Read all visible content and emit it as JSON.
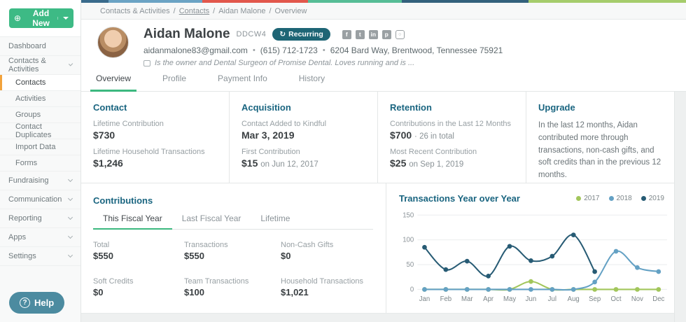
{
  "topbar": {
    "segments": [
      {
        "color": "#3a6b8c",
        "width": "4.5%"
      },
      {
        "color": "#6ba3c4",
        "width": "15.5%"
      },
      {
        "color": "#e2574c",
        "width": "17.5%"
      },
      {
        "color": "#56bd96",
        "width": "15.5%"
      },
      {
        "color": "#33617c",
        "width": "21%"
      },
      {
        "color": "#a5cc6b",
        "width": "26%"
      }
    ]
  },
  "breadcrumb": {
    "items": [
      "Contacts & Activities",
      "Contacts",
      "Aidan Malone",
      "Overview"
    ],
    "separator": "/"
  },
  "sidebar": {
    "add_new_label": "Add New",
    "add_new_icon": "⊕",
    "items": [
      {
        "label": "Dashboard"
      },
      {
        "label": "Contacts & Activities"
      },
      {
        "label": "Contacts"
      },
      {
        "label": "Activities"
      },
      {
        "label": "Groups"
      },
      {
        "label": "Contact Duplicates"
      },
      {
        "label": "Import Data"
      },
      {
        "label": "Forms"
      },
      {
        "label": "Fundraising"
      },
      {
        "label": "Communication"
      },
      {
        "label": "Reporting"
      },
      {
        "label": "Apps"
      },
      {
        "label": "Settings"
      }
    ],
    "help_label": "Help",
    "help_icon": "?"
  },
  "profile": {
    "name": "Aidan Malone",
    "id": "DDCW4",
    "badge": "Recurring",
    "badge_icon": "↻",
    "email": "aidanmalone83@gmail.com",
    "phone": "(615) 712-1723",
    "address": "6204 Bard Way, Brentwood, Tennessee 75921",
    "separator": "•",
    "note": "Is the owner and Dental Surgeon of Promise Dental. Loves running and is ...",
    "social": {
      "facebook": "f",
      "twitter": "t",
      "linkedin": "in",
      "pinterest": "p",
      "instagram": "○"
    }
  },
  "tabs": [
    {
      "label": "Overview"
    },
    {
      "label": "Profile"
    },
    {
      "label": "Payment Info"
    },
    {
      "label": "History"
    }
  ],
  "cards": [
    {
      "title": "Contact",
      "stats": [
        {
          "label": "Lifetime Contribution",
          "value": "$730"
        },
        {
          "label": "Lifetime Household Transactions",
          "value": "$1,246"
        }
      ]
    },
    {
      "title": "Acquisition",
      "stats": [
        {
          "label": "Contact Added to Kindful",
          "value": "Mar 3, 2019"
        },
        {
          "label": "First Contribution",
          "value": "$15",
          "suffix": "on Jun 12, 2017"
        }
      ]
    },
    {
      "title": "Retention",
      "stats": [
        {
          "label": "Contributions in the Last 12 Months",
          "value": "$700",
          "suffix": "· 26 in total"
        },
        {
          "label": "Most Recent Contribution",
          "value": "$25",
          "suffix": "on Sep 1, 2019"
        }
      ]
    },
    {
      "title": "Upgrade",
      "text": "In the last 12 months, Aidan contributed more through transactions, non-cash gifts, and soft credits than in the previous 12 months."
    }
  ],
  "contributions": {
    "title": "Contributions",
    "tabs": [
      {
        "label": "This Fiscal Year"
      },
      {
        "label": "Last Fiscal Year"
      },
      {
        "label": "Lifetime"
      }
    ],
    "stats": [
      {
        "label": "Total",
        "value": "$550"
      },
      {
        "label": "Transactions",
        "value": "$550"
      },
      {
        "label": "Non-Cash Gifts",
        "value": "$0"
      },
      {
        "label": "Soft Credits",
        "value": "$0"
      },
      {
        "label": "Team Transactions",
        "value": "$100"
      },
      {
        "label": "Household Transactions",
        "value": "$1,021"
      }
    ]
  },
  "chart_data": {
    "type": "line",
    "title": "Transactions Year over Year",
    "categories": [
      "Jan",
      "Feb",
      "Mar",
      "Apr",
      "May",
      "Jun",
      "Jul",
      "Aug",
      "Sep",
      "Oct",
      "Nov",
      "Dec"
    ],
    "series": [
      {
        "name": "2017",
        "color": "#a2c65b",
        "values": [
          0,
          0,
          0,
          0,
          0,
          16,
          0,
          0,
          0,
          0,
          0,
          0
        ]
      },
      {
        "name": "2018",
        "color": "#64a1c4",
        "values": [
          0,
          0,
          0,
          0,
          0,
          0,
          0,
          0,
          15,
          77,
          44,
          36
        ]
      },
      {
        "name": "2019",
        "color": "#275b74",
        "values": [
          85,
          40,
          57,
          27,
          87,
          58,
          67,
          110,
          36,
          null,
          null,
          null
        ]
      }
    ],
    "ylim": [
      0,
      150
    ],
    "yticks": [
      0,
      50,
      100,
      150
    ],
    "grid": true,
    "legend_position": "top-right"
  },
  "colors": {
    "accent_green": "#3dba85",
    "active_orange": "#f2a33c",
    "heading_teal": "#1a6580",
    "badge_teal": "#1e6575",
    "tab_underline": "#3cb87f",
    "help_blue": "#4c8ba0"
  }
}
